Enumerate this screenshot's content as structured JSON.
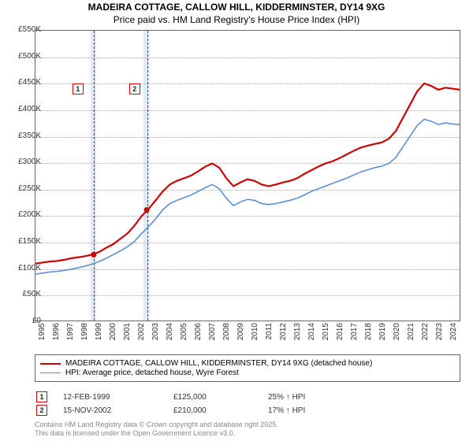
{
  "title": "MADEIRA COTTAGE, CALLOW HILL, KIDDERMINSTER, DY14 9XG",
  "subtitle": "Price paid vs. HM Land Registry's House Price Index (HPI)",
  "chart": {
    "type": "line",
    "x_range": [
      1995,
      2025
    ],
    "y_range": [
      0,
      550
    ],
    "y_unit": "K",
    "y_prefix": "£",
    "y_ticks": [
      0,
      50,
      100,
      150,
      200,
      250,
      300,
      350,
      400,
      450,
      500,
      550
    ],
    "x_ticks": [
      1995,
      1996,
      1997,
      1998,
      1999,
      2000,
      2001,
      2002,
      2003,
      2004,
      2005,
      2006,
      2007,
      2008,
      2009,
      2010,
      2011,
      2012,
      2013,
      2014,
      2015,
      2016,
      2017,
      2018,
      2019,
      2020,
      2021,
      2022,
      2023,
      2024
    ],
    "grid_color": "#aaaaaa",
    "border_color": "#666666",
    "background": "#ffffff",
    "highlight_bands": [
      {
        "x_from": 1998.9,
        "x_to": 1999.3,
        "color": "#e1e9f6"
      },
      {
        "x_from": 2002.6,
        "x_to": 2003.0,
        "color": "#e1e9f6"
      }
    ],
    "vertical_dashed": [
      {
        "x": 1999.12,
        "color": "#dd0000"
      },
      {
        "x": 2002.87,
        "color": "#dd0000"
      }
    ],
    "chart_markers": [
      {
        "label": "1",
        "x": 1997.6,
        "y": 450
      },
      {
        "label": "2",
        "x": 2001.6,
        "y": 450
      }
    ],
    "series": [
      {
        "name": "MADEIRA COTTAGE, CALLOW HILL, KIDDERMINSTER, DY14 9XG (detached house)",
        "color": "#cc0000",
        "width": 2.2,
        "marker_points": [
          {
            "x": 1999.12,
            "y": 125
          },
          {
            "x": 2002.87,
            "y": 210
          }
        ],
        "points": [
          [
            1995,
            108
          ],
          [
            1995.5,
            110
          ],
          [
            1996,
            112
          ],
          [
            1996.5,
            113
          ],
          [
            1997,
            115
          ],
          [
            1997.5,
            118
          ],
          [
            1998,
            120
          ],
          [
            1998.5,
            122
          ],
          [
            1999,
            125
          ],
          [
            1999.5,
            130
          ],
          [
            2000,
            138
          ],
          [
            2000.5,
            145
          ],
          [
            2001,
            155
          ],
          [
            2001.5,
            165
          ],
          [
            2002,
            180
          ],
          [
            2002.5,
            198
          ],
          [
            2003,
            212
          ],
          [
            2003.5,
            228
          ],
          [
            2004,
            245
          ],
          [
            2004.5,
            258
          ],
          [
            2005,
            265
          ],
          [
            2005.5,
            270
          ],
          [
            2006,
            275
          ],
          [
            2006.5,
            283
          ],
          [
            2007,
            292
          ],
          [
            2007.5,
            298
          ],
          [
            2008,
            290
          ],
          [
            2008.5,
            270
          ],
          [
            2009,
            255
          ],
          [
            2009.5,
            262
          ],
          [
            2010,
            268
          ],
          [
            2010.5,
            265
          ],
          [
            2011,
            258
          ],
          [
            2011.5,
            255
          ],
          [
            2012,
            258
          ],
          [
            2012.5,
            262
          ],
          [
            2013,
            265
          ],
          [
            2013.5,
            270
          ],
          [
            2014,
            278
          ],
          [
            2014.5,
            285
          ],
          [
            2015,
            292
          ],
          [
            2015.5,
            298
          ],
          [
            2016,
            302
          ],
          [
            2016.5,
            308
          ],
          [
            2017,
            315
          ],
          [
            2017.5,
            322
          ],
          [
            2018,
            328
          ],
          [
            2018.5,
            332
          ],
          [
            2019,
            335
          ],
          [
            2019.5,
            338
          ],
          [
            2020,
            345
          ],
          [
            2020.5,
            360
          ],
          [
            2021,
            385
          ],
          [
            2021.5,
            410
          ],
          [
            2022,
            435
          ],
          [
            2022.5,
            450
          ],
          [
            2023,
            445
          ],
          [
            2023.5,
            438
          ],
          [
            2024,
            442
          ],
          [
            2024.5,
            440
          ],
          [
            2025,
            438
          ]
        ]
      },
      {
        "name": "HPI: Average price, detached house, Wyre Forest",
        "color": "#5b8fd6",
        "width": 1.6,
        "points": [
          [
            1995,
            88
          ],
          [
            1995.5,
            90
          ],
          [
            1996,
            92
          ],
          [
            1996.5,
            93
          ],
          [
            1997,
            95
          ],
          [
            1997.5,
            97
          ],
          [
            1998,
            100
          ],
          [
            1998.5,
            103
          ],
          [
            1999,
            107
          ],
          [
            1999.5,
            112
          ],
          [
            2000,
            118
          ],
          [
            2000.5,
            125
          ],
          [
            2001,
            132
          ],
          [
            2001.5,
            140
          ],
          [
            2002,
            150
          ],
          [
            2002.5,
            165
          ],
          [
            2003,
            178
          ],
          [
            2003.5,
            193
          ],
          [
            2004,
            210
          ],
          [
            2004.5,
            222
          ],
          [
            2005,
            228
          ],
          [
            2005.5,
            233
          ],
          [
            2006,
            238
          ],
          [
            2006.5,
            245
          ],
          [
            2007,
            252
          ],
          [
            2007.5,
            258
          ],
          [
            2008,
            250
          ],
          [
            2008.5,
            232
          ],
          [
            2009,
            218
          ],
          [
            2009.5,
            225
          ],
          [
            2010,
            230
          ],
          [
            2010.5,
            228
          ],
          [
            2011,
            222
          ],
          [
            2011.5,
            220
          ],
          [
            2012,
            222
          ],
          [
            2012.5,
            225
          ],
          [
            2013,
            228
          ],
          [
            2013.5,
            232
          ],
          [
            2014,
            238
          ],
          [
            2014.5,
            245
          ],
          [
            2015,
            250
          ],
          [
            2015.5,
            255
          ],
          [
            2016,
            260
          ],
          [
            2016.5,
            265
          ],
          [
            2017,
            270
          ],
          [
            2017.5,
            276
          ],
          [
            2018,
            282
          ],
          [
            2018.5,
            286
          ],
          [
            2019,
            290
          ],
          [
            2019.5,
            293
          ],
          [
            2020,
            298
          ],
          [
            2020.5,
            310
          ],
          [
            2021,
            330
          ],
          [
            2021.5,
            350
          ],
          [
            2022,
            370
          ],
          [
            2022.5,
            382
          ],
          [
            2023,
            378
          ],
          [
            2023.5,
            372
          ],
          [
            2024,
            375
          ],
          [
            2024.5,
            373
          ],
          [
            2025,
            372
          ]
        ]
      }
    ]
  },
  "legend": {
    "items": [
      {
        "color": "#cc0000",
        "width": 2.2,
        "label": "MADEIRA COTTAGE, CALLOW HILL, KIDDERMINSTER, DY14 9XG (detached house)"
      },
      {
        "color": "#5b8fd6",
        "width": 1.6,
        "label": "HPI: Average price, detached house, Wyre Forest"
      }
    ]
  },
  "transactions": [
    {
      "num": "1",
      "date": "12-FEB-1999",
      "price": "£125,000",
      "hpi": "25% ↑ HPI"
    },
    {
      "num": "2",
      "date": "15-NOV-2002",
      "price": "£210,000",
      "hpi": "17% ↑ HPI"
    }
  ],
  "footnote": {
    "line1": "Contains HM Land Registry data © Crown copyright and database right 2025.",
    "line2": "This data is licensed under the Open Government Licence v3.0."
  }
}
